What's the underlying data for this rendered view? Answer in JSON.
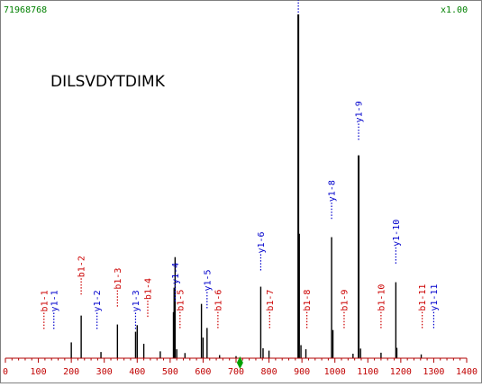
{
  "header": {
    "scan_id": "71968768",
    "scale_factor": "x1.00"
  },
  "chart_data": {
    "type": "bar",
    "title": "DILSVDYTDIMK",
    "xlabel": "",
    "ylabel": "",
    "xlim": [
      0,
      1400
    ],
    "ylim": [
      0,
      100
    ],
    "x_ticks": [
      0,
      100,
      200,
      300,
      400,
      500,
      600,
      700,
      800,
      900,
      1000,
      1100,
      1200,
      1300,
      1400
    ],
    "grid": false,
    "colors": {
      "b_ion": "#cc0000",
      "y_ion": "#0000cc",
      "peak": "#000000",
      "axis": "#b00000",
      "header": "#008000"
    },
    "peaks": [
      {
        "x": 200,
        "y": 4.6
      },
      {
        "x": 230,
        "y": 12.4
      },
      {
        "x": 290,
        "y": 1.8
      },
      {
        "x": 340,
        "y": 9.8
      },
      {
        "x": 395,
        "y": 7.7
      },
      {
        "x": 400,
        "y": 9.6
      },
      {
        "x": 420,
        "y": 4.2
      },
      {
        "x": 470,
        "y": 2.0
      },
      {
        "x": 510,
        "y": 13.4
      },
      {
        "x": 512,
        "y": 20.5
      },
      {
        "x": 515,
        "y": 29.4
      },
      {
        "x": 520,
        "y": 2.6
      },
      {
        "x": 545,
        "y": 1.5
      },
      {
        "x": 595,
        "y": 15.8
      },
      {
        "x": 600,
        "y": 6.0
      },
      {
        "x": 612,
        "y": 8.8
      },
      {
        "x": 650,
        "y": 0.9
      },
      {
        "x": 700,
        "y": 0.6
      },
      {
        "x": 775,
        "y": 20.8
      },
      {
        "x": 782,
        "y": 2.9
      },
      {
        "x": 800,
        "y": 2.2
      },
      {
        "x": 889,
        "y": 100
      },
      {
        "x": 892,
        "y": 36.2
      },
      {
        "x": 897,
        "y": 3.8
      },
      {
        "x": 912,
        "y": 2.6
      },
      {
        "x": 990,
        "y": 35.2
      },
      {
        "x": 994,
        "y": 8.2
      },
      {
        "x": 1055,
        "y": 1.3
      },
      {
        "x": 1072,
        "y": 59.0
      },
      {
        "x": 1078,
        "y": 2.8
      },
      {
        "x": 1140,
        "y": 1.6
      },
      {
        "x": 1185,
        "y": 22.1
      },
      {
        "x": 1188,
        "y": 3.0
      },
      {
        "x": 1262,
        "y": 1.1
      }
    ],
    "annotations": [
      {
        "label": "b1-1",
        "series": "b",
        "x": 117,
        "y": 8
      },
      {
        "label": "y1-1",
        "series": "y",
        "x": 147,
        "y": 8
      },
      {
        "label": "b1-2",
        "series": "b",
        "x": 230,
        "y": 18
      },
      {
        "label": "y1-2",
        "series": "y",
        "x": 278,
        "y": 8
      },
      {
        "label": "b1-3",
        "series": "b",
        "x": 340,
        "y": 14.5
      },
      {
        "label": "y1-3",
        "series": "y",
        "x": 395,
        "y": 8
      },
      {
        "label": "b1-4",
        "series": "b",
        "x": 432,
        "y": 11.5
      },
      {
        "label": "y1-4",
        "series": "y",
        "x": 515,
        "y": 16
      },
      {
        "label": "b1-5",
        "series": "b",
        "x": 530,
        "y": 8.2
      },
      {
        "label": "y1-5",
        "series": "y",
        "x": 612,
        "y": 14
      },
      {
        "label": "b1-6",
        "series": "b",
        "x": 645,
        "y": 8.2
      },
      {
        "label": "y1-6",
        "series": "y",
        "x": 775,
        "y": 25
      },
      {
        "label": "b1-7",
        "series": "b",
        "x": 802,
        "y": 8.2
      },
      {
        "label": "y1-7",
        "series": "y",
        "x": 889,
        "y": 100
      },
      {
        "label": "b1-8",
        "series": "b",
        "x": 915,
        "y": 8.2
      },
      {
        "label": "y1-8",
        "series": "y",
        "x": 990,
        "y": 40
      },
      {
        "label": "b1-9",
        "series": "b",
        "x": 1028,
        "y": 8.2
      },
      {
        "label": "y1-9",
        "series": "y",
        "x": 1072,
        "y": 63
      },
      {
        "label": "b1-10",
        "series": "b",
        "x": 1140,
        "y": 8.2
      },
      {
        "label": "y1-10",
        "series": "y",
        "x": 1185,
        "y": 27
      },
      {
        "label": "b1-11",
        "series": "b",
        "x": 1265,
        "y": 8.2
      },
      {
        "label": "y1-11",
        "series": "y",
        "x": 1300,
        "y": 8.2
      }
    ],
    "markers": [
      {
        "name": "precursor-marker",
        "x": 712
      }
    ]
  }
}
